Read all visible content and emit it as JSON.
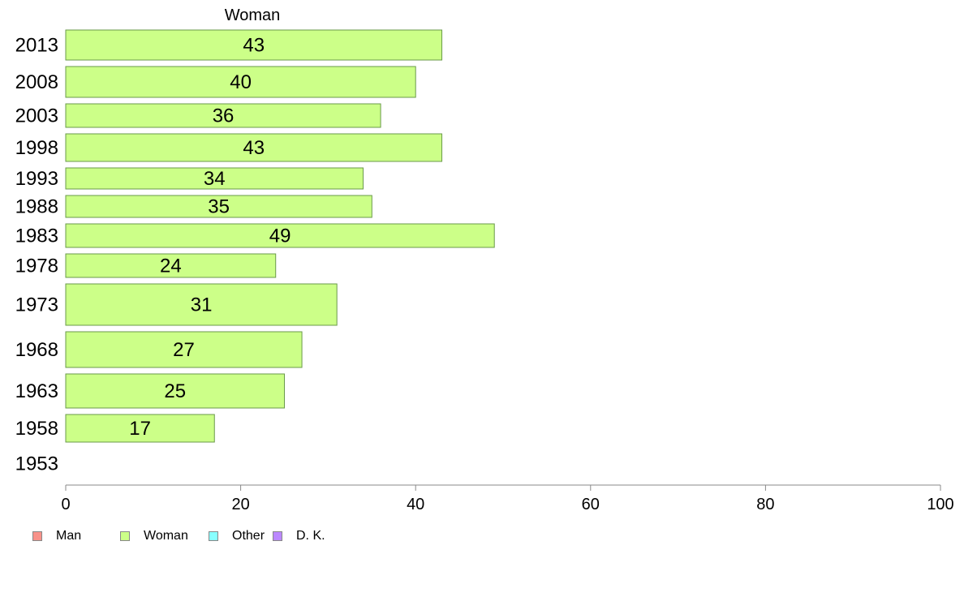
{
  "chart_data": {
    "type": "bar",
    "orientation": "horizontal",
    "title": "Woman",
    "categories": [
      "2013",
      "2008",
      "2003",
      "1998",
      "1993",
      "1988",
      "1983",
      "1978",
      "1973",
      "1968",
      "1963",
      "1958",
      "1953"
    ],
    "series": [
      {
        "name": "Woman",
        "values": [
          43,
          40,
          36,
          43,
          34,
          35,
          49,
          24,
          31,
          27,
          25,
          17,
          null
        ],
        "color": "#ccff88"
      }
    ],
    "xlim": [
      0,
      100
    ],
    "xticks": [
      0,
      20,
      40,
      60,
      80,
      100
    ],
    "grid": false,
    "legend_position": "bottom-left"
  },
  "legend": [
    {
      "label": "Man",
      "color": "#f8928a"
    },
    {
      "label": "Woman",
      "color": "#ccff88"
    },
    {
      "label": "Other",
      "color": "#88ffff"
    },
    {
      "label": "D. K.",
      "color": "#bb88ff"
    }
  ]
}
